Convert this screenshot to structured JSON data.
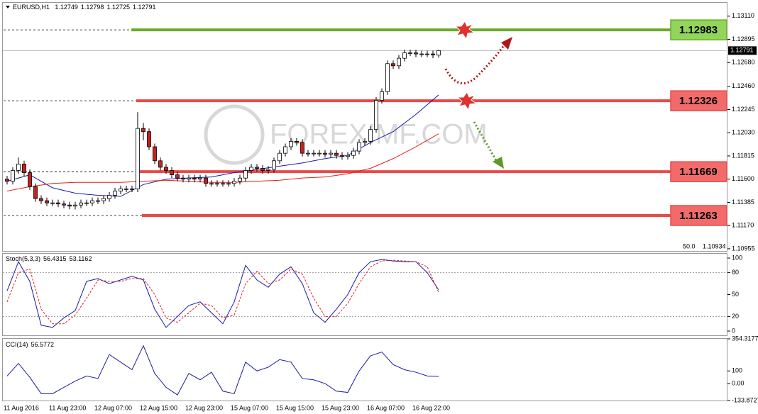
{
  "chart_data": [
    {
      "type": "candlestick",
      "title": "EURUSD,H1",
      "categories": [
        "11 Aug 2016",
        null,
        null,
        null,
        null,
        null,
        null,
        null,
        "11 Aug 23:00",
        null,
        null,
        null,
        null,
        null,
        null,
        null,
        "12 Aug 07:00",
        null,
        null,
        null,
        null,
        null,
        null,
        null,
        "12 Aug 15:00",
        null,
        null,
        null,
        null,
        null,
        null,
        null,
        "12 Aug 23:00",
        null,
        null,
        null,
        null,
        null,
        null,
        null,
        "15 Aug 07:00",
        null,
        null,
        null,
        null,
        null,
        null,
        null,
        "15 Aug 15:00",
        null,
        null,
        null,
        null,
        null,
        null,
        null,
        "15 Aug 23:00",
        null,
        null,
        null,
        null,
        null,
        null,
        null,
        "16 Aug 07:00",
        null,
        null,
        null,
        null,
        null,
        null,
        null,
        "16 Aug 22:00",
        null,
        null,
        null,
        null
      ],
      "open": [
        1.116,
        1.1158,
        1.1168,
        1.1174,
        1.1166,
        1.1153,
        1.1142,
        1.114,
        1.1138,
        1.1138,
        1.1137,
        1.1136,
        1.1135,
        1.1136,
        1.1138,
        1.1138,
        1.114,
        1.114,
        1.1142,
        1.1145,
        1.1149,
        1.1151,
        1.1151,
        1.1151,
        1.1207,
        1.1204,
        1.119,
        1.1177,
        1.1171,
        1.1168,
        1.1164,
        1.1161,
        1.116,
        1.1161,
        1.116,
        1.1161,
        1.1156,
        1.1156,
        1.1156,
        1.1156,
        1.1156,
        1.1158,
        1.1161,
        1.1168,
        1.1171,
        1.117,
        1.1168,
        1.1169,
        1.1177,
        1.1184,
        1.119,
        1.1195,
        1.1194,
        1.1184,
        1.1184,
        1.1184,
        1.1184,
        1.1183,
        1.1184,
        1.1182,
        1.1181,
        1.1182,
        1.1186,
        1.1194,
        1.1195,
        1.1206,
        1.1233,
        1.1241,
        1.1267,
        1.1265,
        1.1272,
        1.1277,
        1.1277,
        1.1276,
        1.1276,
        1.1276,
        1.12749
      ],
      "high": [
        1.1163,
        1.1171,
        1.118,
        1.1177,
        1.1169,
        1.1156,
        1.1145,
        1.1143,
        1.1141,
        1.1141,
        1.114,
        1.1139,
        1.1139,
        1.1141,
        1.1141,
        1.1143,
        1.1143,
        1.1145,
        1.1148,
        1.1152,
        1.1154,
        1.1154,
        1.1154,
        1.1222,
        1.1212,
        1.1207,
        1.1193,
        1.118,
        1.1174,
        1.1171,
        1.1167,
        1.1164,
        1.1164,
        1.1164,
        1.1164,
        1.1164,
        1.1159,
        1.1159,
        1.1159,
        1.1159,
        1.1161,
        1.1164,
        1.1171,
        1.1174,
        1.1174,
        1.1173,
        1.1172,
        1.118,
        1.1187,
        1.1193,
        1.1198,
        1.1198,
        1.1197,
        1.1187,
        1.1187,
        1.1187,
        1.1187,
        1.1187,
        1.1187,
        1.1185,
        1.1185,
        1.1189,
        1.1197,
        1.1198,
        1.1209,
        1.1236,
        1.1244,
        1.127,
        1.127,
        1.1275,
        1.128,
        1.128,
        1.128,
        1.1279,
        1.1279,
        1.1279,
        1.12798
      ],
      "low": [
        1.1155,
        1.1155,
        1.1165,
        1.1163,
        1.115,
        1.1139,
        1.1137,
        1.1135,
        1.1135,
        1.1134,
        1.1133,
        1.1132,
        1.1132,
        1.1133,
        1.1135,
        1.1135,
        1.1137,
        1.1137,
        1.1139,
        1.1142,
        1.1146,
        1.1148,
        1.1148,
        1.1148,
        1.1196,
        1.1187,
        1.1174,
        1.1168,
        1.1165,
        1.1161,
        1.1158,
        1.1157,
        1.1157,
        1.1157,
        1.1157,
        1.1153,
        1.1153,
        1.1153,
        1.1153,
        1.1153,
        1.1153,
        1.1155,
        1.1158,
        1.1165,
        1.1167,
        1.1165,
        1.1165,
        1.1166,
        1.1174,
        1.1181,
        1.1187,
        1.1191,
        1.1181,
        1.1181,
        1.1181,
        1.1181,
        1.118,
        1.118,
        1.1179,
        1.1178,
        1.1178,
        1.1179,
        1.1183,
        1.1191,
        1.1192,
        1.1203,
        1.123,
        1.1238,
        1.1262,
        1.1262,
        1.1269,
        1.1274,
        1.1273,
        1.1273,
        1.1273,
        1.1272,
        1.12725
      ],
      "close": [
        1.1158,
        1.1168,
        1.1174,
        1.1166,
        1.1153,
        1.1142,
        1.114,
        1.1138,
        1.1138,
        1.1137,
        1.1136,
        1.1135,
        1.1136,
        1.1138,
        1.1138,
        1.114,
        1.114,
        1.1142,
        1.1145,
        1.1149,
        1.1151,
        1.1151,
        1.1151,
        1.1207,
        1.1204,
        1.119,
        1.1177,
        1.1171,
        1.1168,
        1.1164,
        1.1161,
        1.116,
        1.1161,
        1.116,
        1.1161,
        1.1156,
        1.1156,
        1.1156,
        1.1156,
        1.1156,
        1.1158,
        1.1161,
        1.1168,
        1.1171,
        1.117,
        1.1168,
        1.1169,
        1.1177,
        1.1184,
        1.119,
        1.1195,
        1.1194,
        1.1184,
        1.1184,
        1.1184,
        1.1184,
        1.1183,
        1.1184,
        1.1182,
        1.1181,
        1.1182,
        1.1186,
        1.1194,
        1.1195,
        1.1206,
        1.1233,
        1.1241,
        1.1267,
        1.1265,
        1.1272,
        1.1277,
        1.1277,
        1.1276,
        1.1276,
        1.1276,
        1.1275,
        1.12791
      ],
      "up_color": "#ffffff",
      "down_color": "#c8201c",
      "moving_averages": [
        {
          "color": "#1a1aa6",
          "x": [
            0,
            4,
            8,
            12,
            16,
            20,
            24,
            28,
            32,
            36,
            40,
            44,
            48,
            52,
            56,
            60,
            64,
            68,
            72,
            76
          ],
          "values": [
            1.1158,
            1.1164,
            1.1152,
            1.1147,
            1.1145,
            1.1144,
            1.1155,
            1.116,
            1.1161,
            1.1162,
            1.1166,
            1.1169,
            1.1172,
            1.1175,
            1.1179,
            1.1182,
            1.1194,
            1.1204,
            1.122,
            1.1238
          ]
        },
        {
          "color": "#e0201c",
          "x": [
            0,
            4,
            8,
            12,
            16,
            20,
            24,
            28,
            32,
            36,
            40,
            44,
            48,
            52,
            56,
            60,
            64,
            68,
            72,
            76
          ],
          "values": [
            1.1149,
            1.1153,
            1.1156,
            1.1157,
            1.1157,
            1.1157,
            1.1158,
            1.1159,
            1.1158,
            1.1157,
            1.1157,
            1.1158,
            1.1159,
            1.1161,
            1.1162,
            1.1165,
            1.117,
            1.1179,
            1.119,
            1.1202
          ]
        }
      ],
      "levels": [
        {
          "value": 1.12983,
          "color": "#6aab2c",
          "box_color": "#93d45a"
        },
        {
          "value": 1.12326,
          "color": "#e84a4a",
          "box_color": "#f26b6b"
        },
        {
          "value": 1.11669,
          "color": "#e84a4a",
          "box_color": "#f26b6b"
        },
        {
          "value": 1.11263,
          "color": "#e84a4a",
          "box_color": "#f26b6b"
        }
      ],
      "watermark": "FOREXIMF.COM",
      "scale_labels": [
        "50.0",
        "1.10934"
      ],
      "ylim": [
        1.10928,
        1.1324
      ],
      "yticks": [
        {
          "value": 1.1311,
          "label": "1.13110"
        },
        1.12895,
        {
          "value": 1.1268,
          "label": "1.12680"
        },
        {
          "value": 1.1246,
          "label": "1.12460"
        },
        1.12245,
        {
          "value": 1.1203,
          "label": "1.12030"
        },
        1.11815,
        {
          "value": 1.116,
          "label": "1.11600"
        },
        1.11385,
        {
          "value": 1.1117,
          "label": "1.11170"
        },
        1.10955
      ]
    },
    {
      "type": "line",
      "title": "Stoch(5,3,3)",
      "x": [
        0,
        2,
        4,
        6,
        8,
        10,
        12,
        14,
        16,
        18,
        20,
        22,
        24,
        26,
        28,
        30,
        32,
        34,
        36,
        38,
        40,
        42,
        44,
        46,
        48,
        50,
        52,
        54,
        56,
        58,
        60,
        62,
        64,
        66,
        68,
        70,
        72,
        74,
        76
      ],
      "series": [
        {
          "color": "#1a1aa6",
          "values": [
            55,
            95,
            68,
            8,
            5,
            18,
            28,
            68,
            72,
            65,
            70,
            75,
            70,
            30,
            5,
            20,
            35,
            40,
            25,
            10,
            40,
            90,
            70,
            60,
            78,
            88,
            65,
            25,
            12,
            30,
            50,
            80,
            95,
            98,
            96,
            95,
            95,
            80,
            56.4315
          ]
        },
        {
          "color": "#e0201c",
          "dashed": true,
          "values": [
            40,
            80,
            85,
            30,
            10,
            10,
            22,
            45,
            70,
            68,
            68,
            72,
            72,
            50,
            18,
            12,
            25,
            38,
            35,
            18,
            22,
            65,
            82,
            65,
            70,
            85,
            78,
            45,
            20,
            20,
            38,
            65,
            88,
            96,
            97,
            96,
            95,
            88,
            53.1162
          ]
        }
      ],
      "levels": [
        80,
        20
      ],
      "ylim": [
        -6.8,
        106.8
      ],
      "yticks": [
        100,
        80,
        50,
        20,
        0
      ]
    },
    {
      "type": "line",
      "title": "CCI(14)",
      "x": [
        0,
        2,
        4,
        6,
        8,
        10,
        12,
        14,
        16,
        18,
        20,
        22,
        24,
        26,
        28,
        30,
        32,
        34,
        36,
        38,
        40,
        42,
        44,
        46,
        48,
        50,
        52,
        54,
        56,
        58,
        60,
        62,
        64,
        66,
        68,
        70,
        72,
        74,
        76
      ],
      "series": [
        {
          "color": "#1a1aa6",
          "values": [
            60,
            160,
            50,
            -80,
            -80,
            -30,
            20,
            60,
            40,
            230,
            170,
            110,
            300,
            80,
            -30,
            -90,
            80,
            30,
            90,
            -60,
            -80,
            170,
            100,
            130,
            190,
            170,
            40,
            30,
            0,
            -60,
            -70,
            100,
            220,
            250,
            150,
            110,
            90,
            60,
            56.5772
          ]
        }
      ],
      "ylim": [
        -140,
        360
      ],
      "yticks": [
        354.3177,
        100,
        {
          "value": 0,
          "label": "0.00"
        },
        -133.8727
      ]
    }
  ]
}
